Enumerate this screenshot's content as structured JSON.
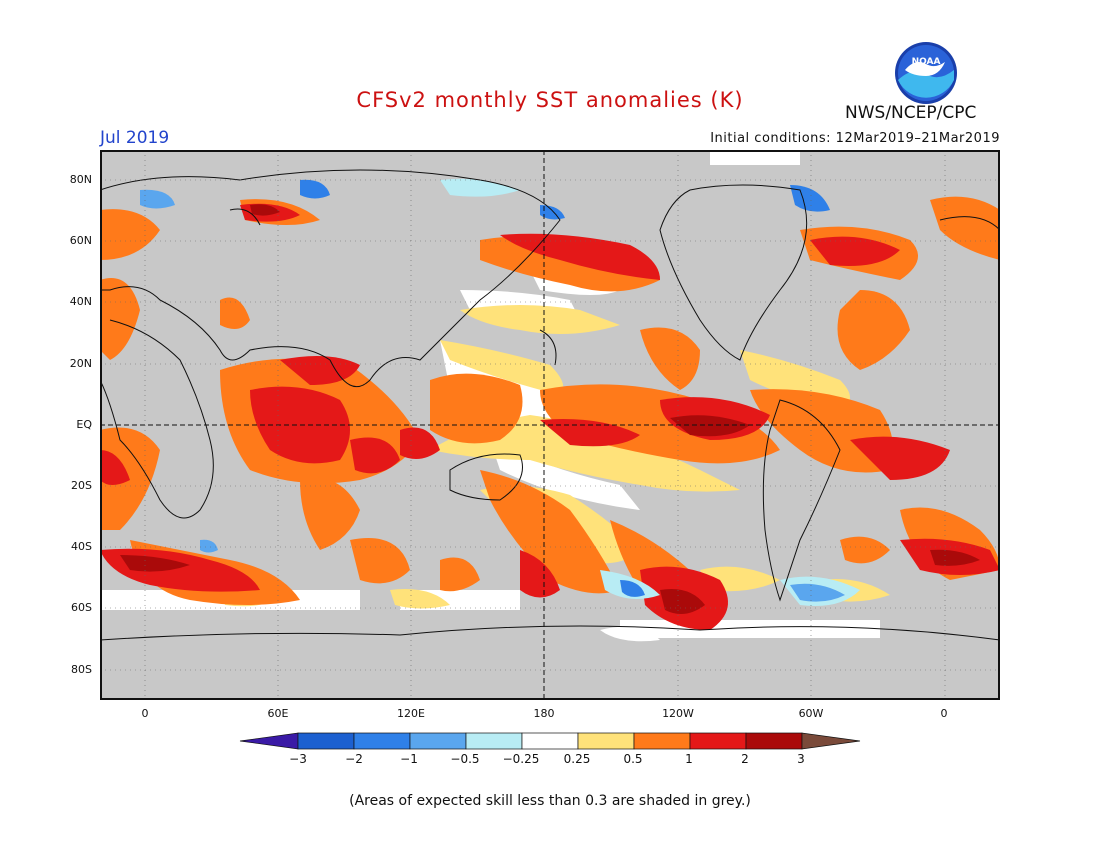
{
  "title": "CFSv2 monthly SST anomalies (K)",
  "period": "Jul 2019",
  "initial_conditions": "Initial conditions: 12Mar2019–21Mar2019",
  "agency": "NWS/NCEP/CPC",
  "logo_text": "NOAA",
  "lat_labels": [
    "80N",
    "60N",
    "40N",
    "20N",
    "EQ",
    "20S",
    "40S",
    "60S",
    "80S"
  ],
  "lon_labels": [
    "0",
    "60E",
    "120E",
    "180",
    "120W",
    "60W",
    "0"
  ],
  "colorbar": {
    "labels": [
      "−3",
      "−2",
      "−1",
      "−0.5",
      "−0.25",
      "0.25",
      "0.5",
      "1",
      "2",
      "3"
    ],
    "colors": [
      "#3a1aa6",
      "#1c60d0",
      "#2f80e8",
      "#5aa6ee",
      "#b8ecf4",
      "#ffffff",
      "#ffe27a",
      "#ff7a1a",
      "#e41818",
      "#aa0a0a",
      "#7a4a3a"
    ]
  },
  "footnote": "(Areas of expected skill less than 0.3 are shaded in grey.)",
  "colors": {
    "land_ocean_grey": "#c8c8c8",
    "title": "#cc1111",
    "period": "#2244cc"
  }
}
